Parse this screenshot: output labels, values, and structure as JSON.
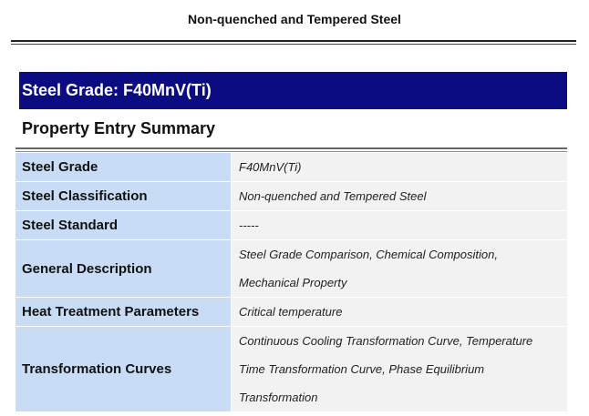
{
  "header": {
    "title": "Non-quenched and Tempered Steel"
  },
  "banner": {
    "title": "Steel Grade: F40MnV(Ti)"
  },
  "section": {
    "title": "Property Entry Summary"
  },
  "table": {
    "rows": [
      [
        "Steel Grade",
        "F40MnV(Ti)"
      ],
      [
        "Steel Classification",
        "Non-quenched and Tempered Steel"
      ],
      [
        "Steel Standard",
        "-----"
      ],
      [
        "General Description",
        "Steel Grade Comparison, Chemical Composition, Mechanical Property"
      ],
      [
        "Heat Treatment Parameters",
        "Critical temperature"
      ],
      [
        "Transformation Curves",
        "Continuous Cooling Transformation Curve, Temperature Time Transformation Curve, Phase Equilibrium Transformation"
      ]
    ]
  }
}
